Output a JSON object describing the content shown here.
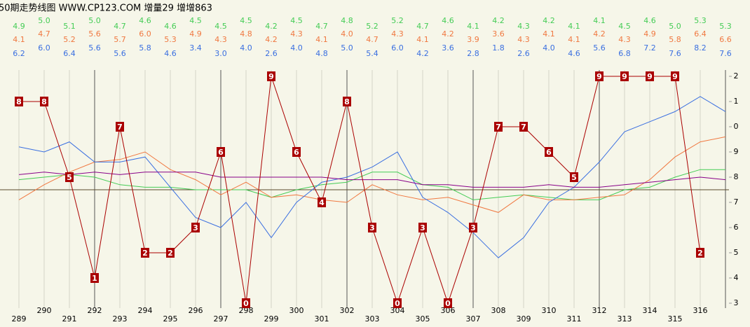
{
  "chart_data": {
    "type": "line",
    "title": "50期走势线图 WWW.CP123.COM 增量29 增增863",
    "categories": [
      "289",
      "290",
      "291",
      "292",
      "293",
      "294",
      "295",
      "296",
      "297",
      "298",
      "299",
      "300",
      "301",
      "302",
      "303",
      "304",
      "305",
      "306",
      "307",
      "308",
      "309",
      "310",
      "311",
      "312",
      "313",
      "314",
      "315",
      "316",
      null
    ],
    "ylim": [
      0,
      9
    ],
    "yticks": [
      {
        "value": 0,
        "label": "3"
      },
      {
        "value": 1,
        "label": "4"
      },
      {
        "value": 2,
        "label": "5"
      },
      {
        "value": 3,
        "label": "6"
      },
      {
        "value": 4,
        "label": "7"
      },
      {
        "value": 5,
        "label": "8"
      },
      {
        "value": 6,
        "label": "9"
      },
      {
        "value": 7,
        "label": "0"
      },
      {
        "value": 8,
        "label": "1"
      },
      {
        "value": 9,
        "label": "2"
      }
    ],
    "reference_line": 4.5,
    "series": [
      {
        "color": "#aa0000",
        "markers": true,
        "values": [
          8,
          8,
          5,
          1,
          7,
          2,
          2,
          3,
          6,
          0,
          9,
          6,
          4,
          8,
          3,
          0,
          3,
          0,
          3,
          7,
          7,
          6,
          5,
          9,
          9,
          9,
          9,
          2,
          null
        ]
      },
      {
        "color": "#44cc55",
        "values": [
          4.9,
          5.0,
          5.1,
          5.0,
          4.7,
          4.6,
          4.6,
          4.5,
          4.5,
          4.5,
          4.2,
          4.5,
          4.7,
          4.8,
          5.2,
          5.2,
          4.7,
          4.6,
          4.1,
          4.2,
          4.3,
          4.2,
          4.1,
          4.1,
          4.5,
          4.6,
          5.0,
          5.3,
          5.3
        ],
        "value_labels": [
          "4.9",
          "5.0",
          "5.1",
          "5.0",
          "4.7",
          "4.6",
          "4.6",
          "4.5",
          "4.5",
          "4.5",
          "4.2",
          "4.5",
          "4.7",
          "4.8",
          "5.2",
          "5.2",
          "4.7",
          "4.6",
          "4.1",
          "4.2",
          "4.3",
          "4.2",
          "4.1",
          "4.1",
          "4.5",
          "4.6",
          "5.0",
          "5.3",
          "5.3"
        ]
      },
      {
        "color": "#f07840",
        "values": [
          4.1,
          4.7,
          5.2,
          5.6,
          5.7,
          6.0,
          5.3,
          4.9,
          4.3,
          4.8,
          4.2,
          4.3,
          4.1,
          4.0,
          4.7,
          4.3,
          4.1,
          4.2,
          3.9,
          3.6,
          4.3,
          4.1,
          4.1,
          4.2,
          4.3,
          4.9,
          5.8,
          6.4,
          6.6
        ],
        "value_labels": [
          "4.1",
          "4.7",
          "5.2",
          "5.6",
          "5.7",
          "6.0",
          "5.3",
          "4.9",
          "4.3",
          "4.8",
          "4.2",
          "4.3",
          "4.1",
          "4.0",
          "4.7",
          "4.3",
          "4.1",
          "4.2",
          "3.9",
          "3.6",
          "4.3",
          "4.1",
          "4.1",
          "4.2",
          "4.3",
          "4.9",
          "5.8",
          "6.4",
          "6.6"
        ]
      },
      {
        "color": "#3a6fe0",
        "values": [
          6.2,
          6.0,
          6.4,
          5.6,
          5.6,
          5.8,
          4.6,
          3.4,
          3.0,
          4.0,
          2.6,
          4.0,
          4.8,
          5.0,
          5.4,
          6.0,
          4.2,
          3.6,
          2.8,
          1.8,
          2.6,
          4.0,
          4.6,
          5.6,
          6.8,
          7.2,
          7.6,
          8.2,
          7.6
        ],
        "value_labels": [
          "6.2",
          "6.0",
          "6.4",
          "5.6",
          "5.6",
          "5.8",
          "4.6",
          "3.4",
          "3.0",
          "4.0",
          "2.6",
          "4.0",
          "4.8",
          "5.0",
          "5.4",
          "6.0",
          "4.2",
          "3.6",
          "2.8",
          "1.8",
          "2.6",
          "4.0",
          "4.6",
          "5.6",
          "6.8",
          "7.2",
          "7.6",
          "8.2",
          "7.6"
        ]
      },
      {
        "color": "#880088",
        "values": [
          5.1,
          5.2,
          5.1,
          5.2,
          5.1,
          5.2,
          5.2,
          5.2,
          5.0,
          5.0,
          5.0,
          5.0,
          5.0,
          4.9,
          4.9,
          4.9,
          4.7,
          4.7,
          4.6,
          4.6,
          4.6,
          4.7,
          4.6,
          4.6,
          4.7,
          4.8,
          4.9,
          5.0,
          4.9
        ]
      }
    ]
  }
}
